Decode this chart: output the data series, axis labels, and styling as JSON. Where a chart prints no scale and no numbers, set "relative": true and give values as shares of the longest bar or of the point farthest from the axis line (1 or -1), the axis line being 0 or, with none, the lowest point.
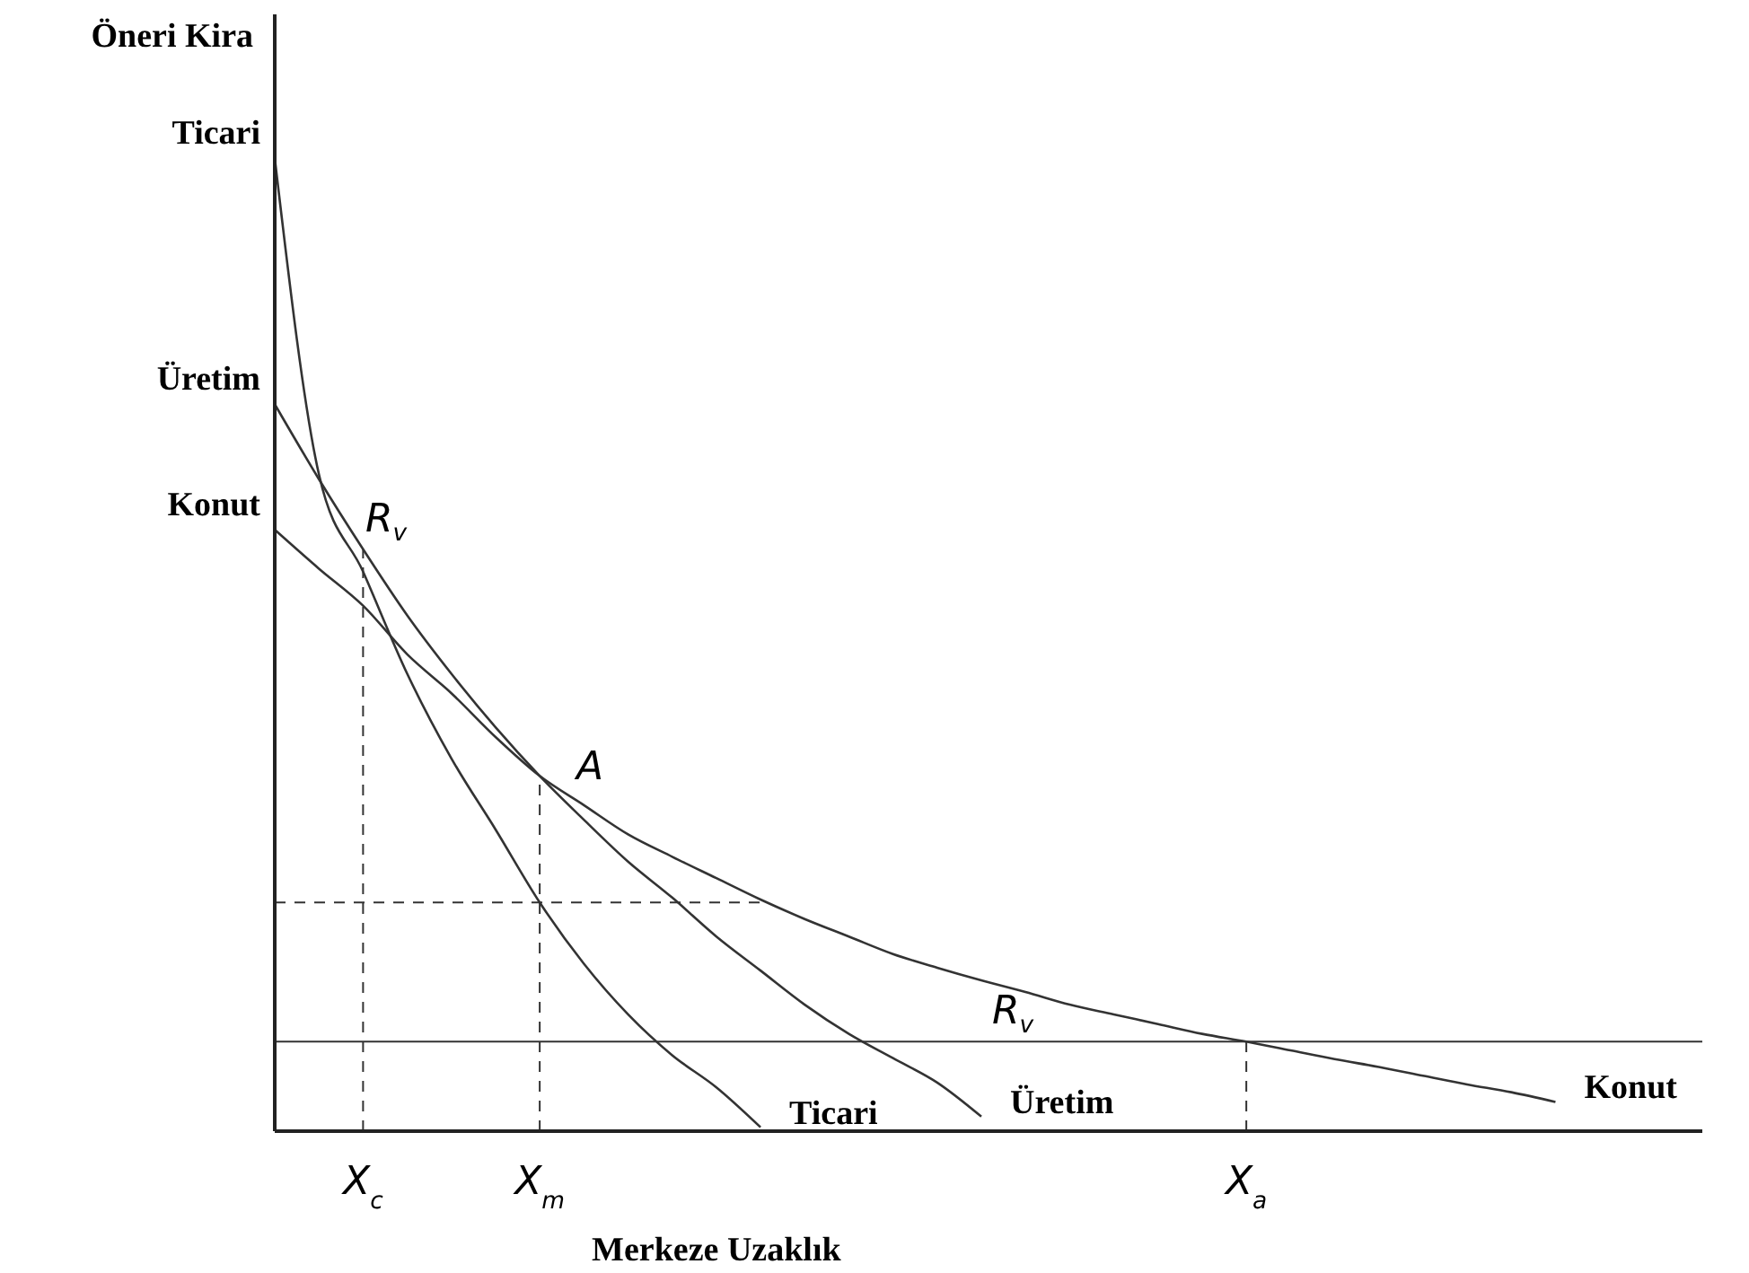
{
  "chart_data": {
    "type": "line",
    "relative": true,
    "ylabel": "Öneri Kira",
    "xlabel": "Merkeze Uzaklık",
    "categories": [
      null,
      null,
      "X$_{c}$",
      null,
      null,
      null,
      "X$_{m}$",
      null,
      null,
      null,
      null,
      null,
      null,
      null,
      null,
      null,
      null,
      null,
      null,
      null,
      null,
      null,
      "X$_{a}$",
      null,
      null,
      null,
      null,
      null,
      null,
      null,
      null,
      null,
      null
    ],
    "series": [
      {
        "name": "Ticari",
        "color": "#333333",
        "values": [
          1,
          0.675,
          0.575,
          0.47,
          0.383,
          0.31,
          0.235,
          0.172,
          0.12,
          0.078,
          0.045,
          0.004,
          null,
          null,
          null,
          null,
          null,
          null,
          null,
          null,
          null,
          null,
          null,
          null,
          null,
          null,
          null,
          null,
          null,
          null,
          null,
          null,
          null
        ]
      },
      {
        "name": "Üretim",
        "color": "#333333",
        "values": [
          0.747,
          0.67,
          0.598,
          0.53,
          0.47,
          0.415,
          0.365,
          0.32,
          0.277,
          0.24,
          0.2,
          0.165,
          0.13,
          0.1,
          0.075,
          0.05,
          0.015,
          null,
          null,
          null,
          null,
          null,
          null,
          null,
          null,
          null,
          null,
          null,
          null,
          null,
          null,
          null,
          null
        ]
      },
      {
        "name": "Konut",
        "color": "#333333",
        "values": [
          0.618,
          0.578,
          0.54,
          0.49,
          0.45,
          0.405,
          0.365,
          0.335,
          0.305,
          0.282,
          0.26,
          0.238,
          0.218,
          0.2,
          0.182,
          0.168,
          0.155,
          0.143,
          0.13,
          0.12,
          0.11,
          0.1,
          0.092,
          0.083,
          0.074,
          0.066,
          0.057,
          0.048,
          0.04,
          0.03,
          null,
          null,
          null
        ]
      }
    ],
    "ref_lines": [
      {
        "axis": "x",
        "value": "X$_{c}$",
        "line_style": "dashed"
      },
      {
        "axis": "x",
        "value": "X$_{m}$",
        "line_style": "dashed"
      },
      {
        "axis": "x",
        "value": "X$_{a}$",
        "line_style": "dashed"
      },
      {
        "axis": "y",
        "value": 0.235,
        "line_style": "dashed"
      },
      {
        "axis": "y",
        "value": 0.092,
        "line_style": "solid"
      }
    ],
    "annotations": [
      "R$_{v}$",
      {
        "text": "A",
        "x": "X$_{m}$",
        "y": 0.365
      },
      "R$_{v}$"
    ],
    "legend": false,
    "grid": false,
    "marker": "none",
    "line_style": "solid"
  }
}
